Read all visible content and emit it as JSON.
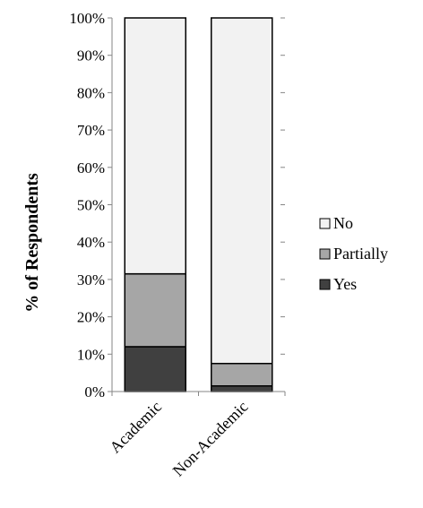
{
  "chart_data": {
    "type": "bar",
    "stacked": true,
    "percent": true,
    "categories": [
      "Academic",
      "Non-Academic"
    ],
    "series": [
      {
        "name": "Yes",
        "values": [
          12,
          1.5
        ],
        "color": "#404040"
      },
      {
        "name": "Partially",
        "values": [
          19.5,
          6
        ],
        "color": "#a6a6a6"
      },
      {
        "name": "No",
        "values": [
          68.5,
          92.5
        ],
        "color": "#f2f2f2"
      }
    ],
    "yticks": [
      "0%",
      "10%",
      "20%",
      "30%",
      "40%",
      "50%",
      "60%",
      "70%",
      "80%",
      "90%",
      "100%"
    ],
    "ylabel": "% of Respondents",
    "xlabel": "",
    "ylim": [
      0,
      100
    ],
    "grid": false,
    "legend_position": "right",
    "legend_order": [
      "No",
      "Partially",
      "Yes"
    ]
  }
}
